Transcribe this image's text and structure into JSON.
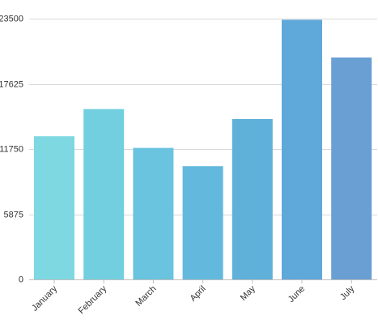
{
  "chart_data": {
    "type": "bar",
    "categories": [
      "January",
      "February",
      "March",
      "April",
      "May",
      "June",
      "July"
    ],
    "values": [
      12900,
      15350,
      11850,
      10200,
      14450,
      23400,
      20000
    ],
    "yticks": [
      0,
      5875,
      11750,
      17625,
      23500
    ],
    "ytick_labels": [
      "0",
      "5875",
      "11750",
      "17625",
      "23500"
    ],
    "ylim": [
      0,
      23500
    ],
    "grid": true,
    "title": "",
    "xlabel": "",
    "ylabel": "",
    "bar_colors": [
      "#7ed8e1",
      "#71cfe0",
      "#6bc4df",
      "#63b9dd",
      "#5fb1da",
      "#5fa8da",
      "#6a9fd3"
    ]
  }
}
